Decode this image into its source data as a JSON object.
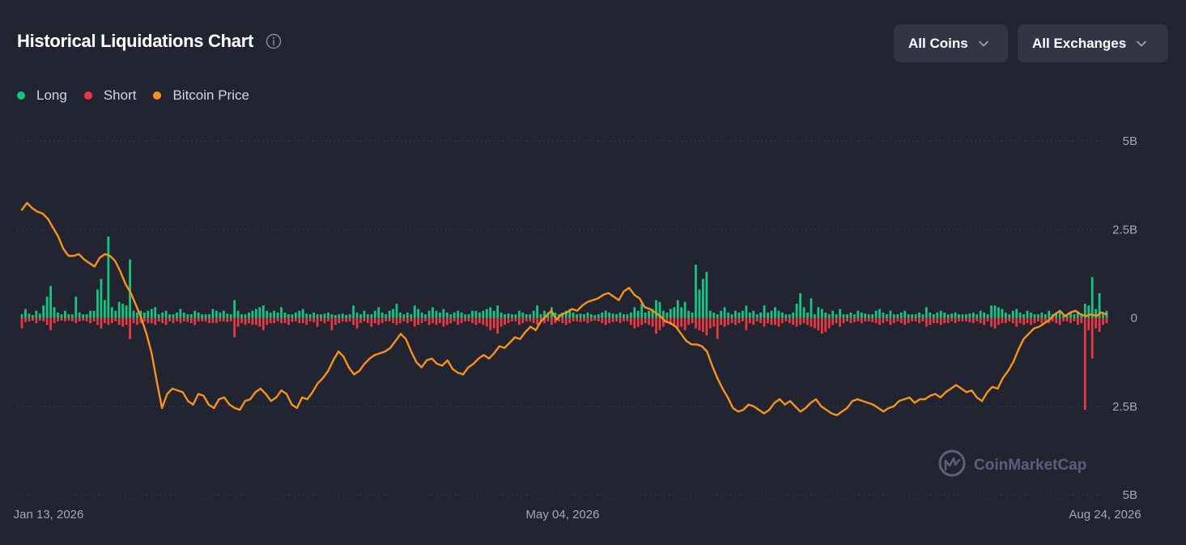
{
  "header": {
    "title": "Historical Liquidations Chart",
    "coins_label": "All Coins",
    "exchanges_label": "All Exchanges"
  },
  "legend": [
    {
      "label": "Long",
      "color": "#16c784"
    },
    {
      "label": "Short",
      "color": "#ea3943"
    },
    {
      "label": "Bitcoin Price",
      "color": "#f7931a"
    }
  ],
  "watermark": "CoinMarketCap",
  "chart_data": {
    "type": "bar",
    "x_tick_labels": [
      "Jan 13, 2026",
      "May 04, 2026",
      "Aug 24, 2026"
    ],
    "y_tick_labels": [
      "5B",
      "2.5B",
      "0",
      "2.5B",
      "5B"
    ],
    "ylim": [
      -5,
      5
    ],
    "grid": true,
    "legend_position": "top-left",
    "series": [
      {
        "name": "Long",
        "color": "#16c784",
        "values": [
          0.1,
          0.25,
          0.12,
          0.08,
          0.2,
          0.12,
          0.35,
          0.6,
          0.9,
          0.3,
          0.15,
          0.1,
          0.2,
          0.1,
          0.1,
          0.6,
          0.15,
          0.1,
          0.1,
          0.2,
          0.2,
          0.8,
          1.1,
          0.5,
          2.3,
          0.3,
          0.2,
          0.45,
          0.4,
          0.35,
          1.65,
          0.2,
          0.15,
          0.2,
          0.15,
          0.2,
          0.25,
          0.3,
          0.1,
          0.15,
          0.2,
          0.1,
          0.1,
          0.15,
          0.25,
          0.15,
          0.1,
          0.1,
          0.2,
          0.15,
          0.1,
          0.1,
          0.1,
          0.25,
          0.2,
          0.15,
          0.2,
          0.12,
          0.1,
          0.5,
          0.2,
          0.1,
          0.1,
          0.15,
          0.2,
          0.25,
          0.3,
          0.35,
          0.2,
          0.15,
          0.2,
          0.15,
          0.3,
          0.15,
          0.1,
          0.1,
          0.15,
          0.2,
          0.25,
          0.12,
          0.1,
          0.15,
          0.1,
          0.1,
          0.12,
          0.15,
          0.1,
          0.08,
          0.1,
          0.12,
          0.08,
          0.1,
          0.35,
          0.15,
          0.1,
          0.2,
          0.1,
          0.1,
          0.2,
          0.3,
          0.15,
          0.1,
          0.2,
          0.25,
          0.4,
          0.15,
          0.1,
          0.15,
          0.1,
          0.35,
          0.25,
          0.15,
          0.1,
          0.2,
          0.3,
          0.2,
          0.15,
          0.25,
          0.15,
          0.1,
          0.15,
          0.2,
          0.15,
          0.1,
          0.1,
          0.2,
          0.2,
          0.15,
          0.2,
          0.25,
          0.3,
          0.2,
          0.35,
          0.15,
          0.1,
          0.12,
          0.1,
          0.1,
          0.2,
          0.15,
          0.1,
          0.1,
          0.2,
          0.35,
          0.1,
          0.2,
          0.15,
          0.3,
          0.15,
          0.1,
          0.15,
          0.2,
          0.25,
          0.15,
          0.1,
          0.12,
          0.1,
          0.15,
          0.1,
          0.08,
          0.1,
          0.15,
          0.2,
          0.15,
          0.12,
          0.1,
          0.15,
          0.1,
          0.1,
          0.15,
          0.3,
          0.2,
          0.4,
          0.15,
          0.2,
          0.25,
          0.5,
          0.45,
          0.2,
          0.15,
          0.25,
          0.3,
          0.5,
          0.3,
          0.45,
          0.2,
          0.15,
          1.5,
          0.8,
          1.1,
          1.3,
          0.2,
          0.15,
          0.1,
          0.2,
          0.3,
          0.15,
          0.1,
          0.2,
          0.15,
          0.2,
          0.35,
          0.15,
          0.2,
          0.1,
          0.15,
          0.35,
          0.15,
          0.2,
          0.3,
          0.2,
          0.15,
          0.1,
          0.1,
          0.15,
          0.4,
          0.7,
          0.3,
          0.15,
          0.55,
          0.1,
          0.3,
          0.25,
          0.15,
          0.1,
          0.2,
          0.1,
          0.25,
          0.1,
          0.1,
          0.15,
          0.1,
          0.2,
          0.15,
          0.12,
          0.1,
          0.1,
          0.2,
          0.25,
          0.15,
          0.1,
          0.2,
          0.1,
          0.1,
          0.15,
          0.2,
          0.1,
          0.1,
          0.1,
          0.15,
          0.1,
          0.3,
          0.15,
          0.1,
          0.15,
          0.2,
          0.15,
          0.1,
          0.12,
          0.15,
          0.1,
          0.1,
          0.1,
          0.12,
          0.15,
          0.1,
          0.2,
          0.15,
          0.1,
          0.35,
          0.35,
          0.3,
          0.25,
          0.15,
          0.1,
          0.2,
          0.25,
          0.15,
          0.1,
          0.2,
          0.15,
          0.1,
          0.1,
          0.15,
          0.1,
          0.2,
          0.1,
          0.15,
          0.2,
          0.1,
          0.1,
          0.15,
          0.1,
          0.15,
          0.1,
          0.4,
          0.35,
          1.15,
          0.25,
          0.7,
          0.15,
          0.2
        ]
      },
      {
        "name": "Short",
        "color": "#ea3943",
        "values": [
          0.3,
          0.12,
          0.1,
          0.08,
          0.15,
          0.08,
          0.1,
          0.2,
          0.35,
          0.15,
          0.1,
          0.08,
          0.1,
          0.08,
          0.1,
          0.15,
          0.1,
          0.08,
          0.1,
          0.15,
          0.1,
          0.2,
          0.3,
          0.15,
          0.2,
          0.15,
          0.1,
          0.2,
          0.25,
          0.2,
          0.6,
          0.15,
          0.2,
          0.15,
          0.1,
          0.15,
          0.15,
          0.2,
          0.1,
          0.15,
          0.2,
          0.1,
          0.15,
          0.1,
          0.15,
          0.1,
          0.12,
          0.15,
          0.2,
          0.1,
          0.1,
          0.1,
          0.15,
          0.15,
          0.15,
          0.1,
          0.1,
          0.12,
          0.1,
          0.55,
          0.25,
          0.15,
          0.2,
          0.15,
          0.2,
          0.2,
          0.25,
          0.35,
          0.2,
          0.15,
          0.15,
          0.1,
          0.15,
          0.15,
          0.2,
          0.12,
          0.1,
          0.15,
          0.15,
          0.2,
          0.1,
          0.12,
          0.25,
          0.1,
          0.15,
          0.1,
          0.35,
          0.2,
          0.15,
          0.1,
          0.12,
          0.1,
          0.2,
          0.3,
          0.15,
          0.1,
          0.15,
          0.25,
          0.15,
          0.2,
          0.15,
          0.1,
          0.1,
          0.15,
          0.2,
          0.15,
          0.1,
          0.15,
          0.1,
          0.25,
          0.2,
          0.15,
          0.1,
          0.2,
          0.15,
          0.2,
          0.15,
          0.25,
          0.2,
          0.15,
          0.1,
          0.2,
          0.15,
          0.1,
          0.1,
          0.15,
          0.2,
          0.15,
          0.2,
          0.25,
          0.35,
          0.3,
          0.45,
          0.25,
          0.2,
          0.15,
          0.1,
          0.1,
          0.2,
          0.15,
          0.1,
          0.1,
          0.15,
          0.2,
          0.1,
          0.15,
          0.1,
          0.2,
          0.15,
          0.1,
          0.15,
          0.2,
          0.15,
          0.1,
          0.1,
          0.12,
          0.1,
          0.15,
          0.1,
          0.08,
          0.1,
          0.15,
          0.2,
          0.15,
          0.12,
          0.1,
          0.15,
          0.1,
          0.1,
          0.2,
          0.3,
          0.25,
          0.2,
          0.15,
          0.2,
          0.25,
          0.45,
          0.35,
          0.25,
          0.15,
          0.2,
          0.25,
          0.3,
          0.25,
          0.35,
          0.2,
          0.15,
          0.3,
          0.35,
          0.4,
          0.5,
          0.3,
          0.25,
          0.6,
          0.2,
          0.25,
          0.2,
          0.15,
          0.2,
          0.15,
          0.1,
          0.35,
          0.15,
          0.2,
          0.1,
          0.15,
          0.25,
          0.15,
          0.2,
          0.2,
          0.25,
          0.15,
          0.1,
          0.15,
          0.2,
          0.25,
          0.2,
          0.15,
          0.2,
          0.25,
          0.3,
          0.35,
          0.45,
          0.4,
          0.3,
          0.2,
          0.15,
          0.25,
          0.15,
          0.1,
          0.15,
          0.12,
          0.1,
          0.15,
          0.1,
          0.1,
          0.12,
          0.15,
          0.2,
          0.15,
          0.1,
          0.2,
          0.15,
          0.1,
          0.15,
          0.2,
          0.15,
          0.1,
          0.1,
          0.15,
          0.1,
          0.25,
          0.2,
          0.15,
          0.15,
          0.2,
          0.15,
          0.15,
          0.1,
          0.15,
          0.1,
          0.1,
          0.1,
          0.12,
          0.15,
          0.1,
          0.15,
          0.2,
          0.1,
          0.25,
          0.3,
          0.2,
          0.15,
          0.15,
          0.1,
          0.15,
          0.25,
          0.15,
          0.2,
          0.15,
          0.2,
          0.15,
          0.1,
          0.15,
          0.1,
          0.15,
          0.1,
          0.15,
          0.2,
          0.1,
          0.1,
          0.15,
          0.1,
          0.2,
          0.15,
          2.6,
          0.35,
          1.15,
          0.3,
          0.4,
          0.2,
          0.15
        ]
      },
      {
        "name": "Bitcoin Price",
        "color": "#f7931a",
        "values": [
          3.05,
          3.25,
          3.1,
          3.0,
          2.95,
          2.8,
          2.55,
          2.3,
          1.95,
          1.75,
          1.75,
          1.8,
          1.65,
          1.55,
          1.45,
          1.7,
          1.8,
          1.75,
          1.6,
          1.3,
          0.95,
          0.7,
          0.35,
          0.0,
          -0.45,
          -1.0,
          -1.8,
          -2.55,
          -2.15,
          -2.0,
          -2.05,
          -2.1,
          -2.35,
          -2.45,
          -2.15,
          -2.2,
          -2.45,
          -2.55,
          -2.3,
          -2.25,
          -2.45,
          -2.55,
          -2.6,
          -2.35,
          -2.3,
          -2.1,
          -2.0,
          -2.15,
          -2.35,
          -2.25,
          -2.05,
          -2.15,
          -2.45,
          -2.55,
          -2.25,
          -2.3,
          -2.1,
          -1.85,
          -1.7,
          -1.5,
          -1.2,
          -0.95,
          -1.1,
          -1.4,
          -1.6,
          -1.5,
          -1.3,
          -1.15,
          -1.05,
          -1.0,
          -0.95,
          -0.85,
          -0.65,
          -0.45,
          -0.6,
          -0.95,
          -1.25,
          -1.4,
          -1.2,
          -1.15,
          -1.3,
          -1.35,
          -1.2,
          -1.45,
          -1.55,
          -1.6,
          -1.4,
          -1.3,
          -1.15,
          -1.05,
          -1.15,
          -1.0,
          -0.8,
          -0.85,
          -0.7,
          -0.55,
          -0.6,
          -0.4,
          -0.25,
          -0.35,
          -0.1,
          0.05,
          0.2,
          -0.05,
          0.1,
          0.15,
          0.25,
          0.2,
          0.35,
          0.45,
          0.5,
          0.55,
          0.65,
          0.7,
          0.6,
          0.5,
          0.75,
          0.85,
          0.65,
          0.55,
          0.3,
          0.25,
          0.15,
          0.05,
          -0.1,
          -0.15,
          -0.25,
          -0.45,
          -0.65,
          -0.75,
          -0.75,
          -0.8,
          -0.95,
          -1.35,
          -1.7,
          -2.0,
          -2.25,
          -2.55,
          -2.65,
          -2.6,
          -2.45,
          -2.5,
          -2.6,
          -2.7,
          -2.6,
          -2.4,
          -2.3,
          -2.45,
          -2.35,
          -2.5,
          -2.65,
          -2.55,
          -2.4,
          -2.3,
          -2.5,
          -2.6,
          -2.7,
          -2.75,
          -2.65,
          -2.55,
          -2.35,
          -2.3,
          -2.35,
          -2.4,
          -2.45,
          -2.55,
          -2.65,
          -2.55,
          -2.5,
          -2.35,
          -2.3,
          -2.25,
          -2.4,
          -2.3,
          -2.3,
          -2.2,
          -2.15,
          -2.25,
          -2.1,
          -2.0,
          -1.9,
          -2.0,
          -2.1,
          -2.05,
          -2.25,
          -2.35,
          -2.1,
          -1.95,
          -2.0,
          -1.7,
          -1.5,
          -1.25,
          -0.9,
          -0.6,
          -0.45,
          -0.3,
          -0.25,
          -0.15,
          -0.05,
          0.1,
          0.2,
          0.05,
          0.15,
          0.2,
          0.1,
          0.05,
          0.1,
          0.05,
          0.15,
          0.1
        ]
      }
    ]
  }
}
